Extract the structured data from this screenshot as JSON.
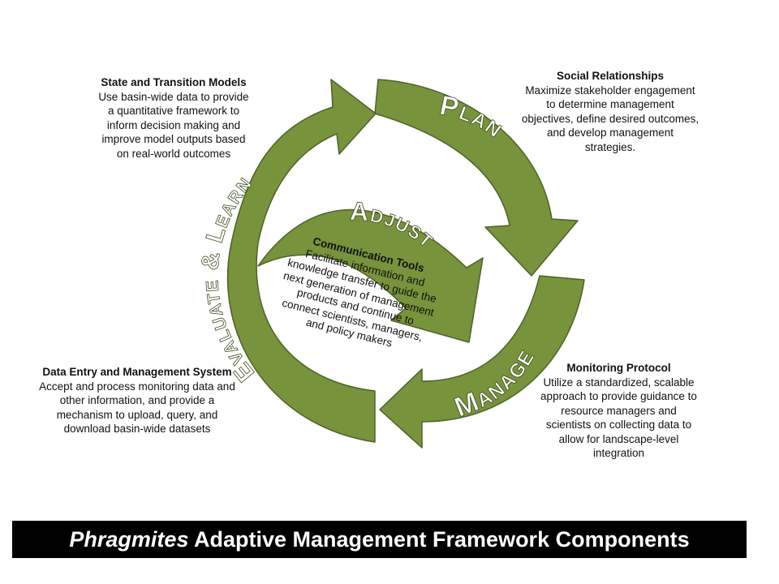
{
  "diagram": {
    "cycle_labels": {
      "plan": "Plan",
      "manage": "Manage",
      "evaluate_learn": "Evaluate & Learn",
      "adjust": "Adjust"
    },
    "components": {
      "state_transition": {
        "title": "State and Transition Models",
        "lines": [
          "Use basin-wide data to provide",
          "a quantitative framework to",
          "inform decision making and",
          "improve model outputs based",
          "on real-world outcomes"
        ]
      },
      "social": {
        "title": "Social Relationships",
        "lines": [
          "Maximize stakeholder engagement",
          "to determine management",
          "objectives, define desired outcomes,",
          "and develop management",
          "strategies."
        ]
      },
      "data_entry": {
        "title": "Data Entry and Management System",
        "lines": [
          "Accept and process monitoring data and",
          "other information, and provide a",
          "mechanism to upload, query, and",
          "download basin-wide datasets"
        ]
      },
      "monitoring": {
        "title": "Monitoring Protocol",
        "lines": [
          "Utilize a standardized, scalable",
          "approach to provide guidance to",
          "resource managers and",
          "scientists on collecting data  to",
          "allow for landscape-level",
          "integration"
        ]
      },
      "communication": {
        "title": "Communication Tools",
        "lines": [
          "Facilitate information and",
          "knowledge transfer to guide the",
          "next generation of management",
          "products and continue to",
          "connect scientists, managers,",
          "and policy makers"
        ]
      }
    },
    "banner": {
      "italic": "Phragmites",
      "rest": " Adaptive Management Framework Components"
    },
    "colors": {
      "arrow_fill": "#77933c",
      "arrow_stroke": "#4f6228",
      "label_text": "#ffffff",
      "banner_bg": "#000000"
    }
  }
}
